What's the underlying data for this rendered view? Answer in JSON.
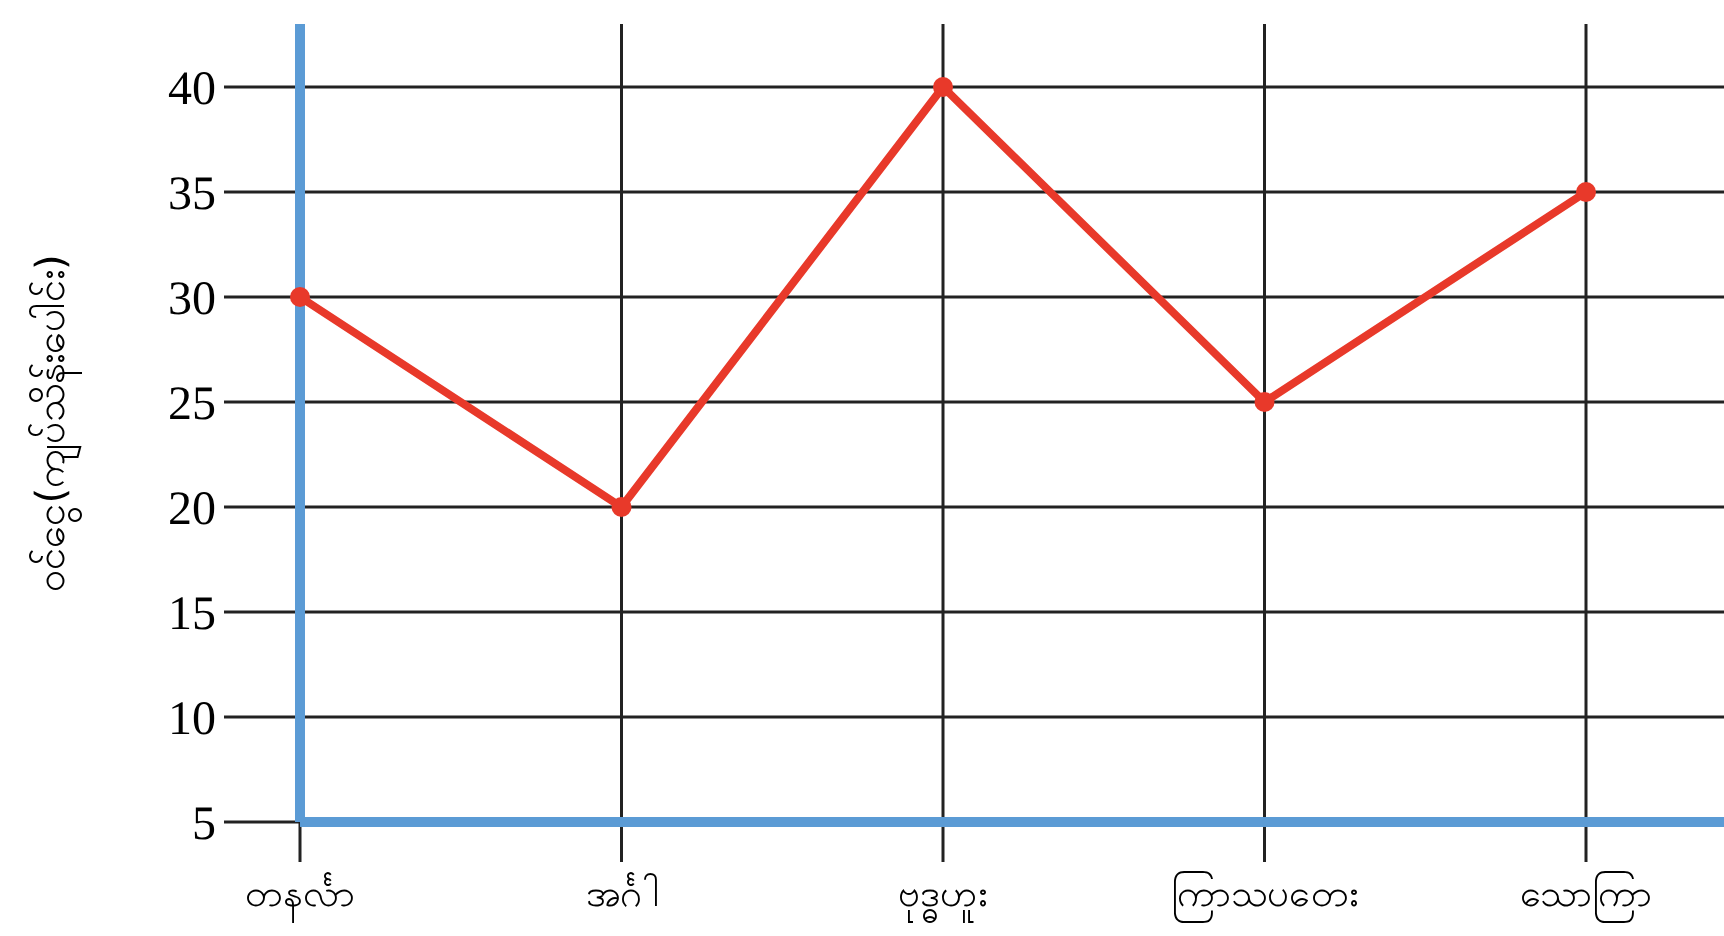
{
  "chart_data": {
    "type": "line",
    "ylabel": "ဝင်ငွေ(ကျပ်သိန်းပေါင်း)",
    "categories": [
      "တနင်္လာ",
      "အင်္ဂါ",
      "ဗုဒ္ဓဟူး",
      "ကြာသပတေး",
      "သောကြာ"
    ],
    "series": [
      {
        "color": "#e8392a",
        "values": [
          30,
          20,
          40,
          25,
          35
        ]
      }
    ],
    "ylim": [
      5,
      43
    ],
    "yticks": [
      5,
      10,
      15,
      20,
      25,
      30,
      35,
      40
    ],
    "grid": true,
    "marker": "circle",
    "line_style": "solid"
  }
}
